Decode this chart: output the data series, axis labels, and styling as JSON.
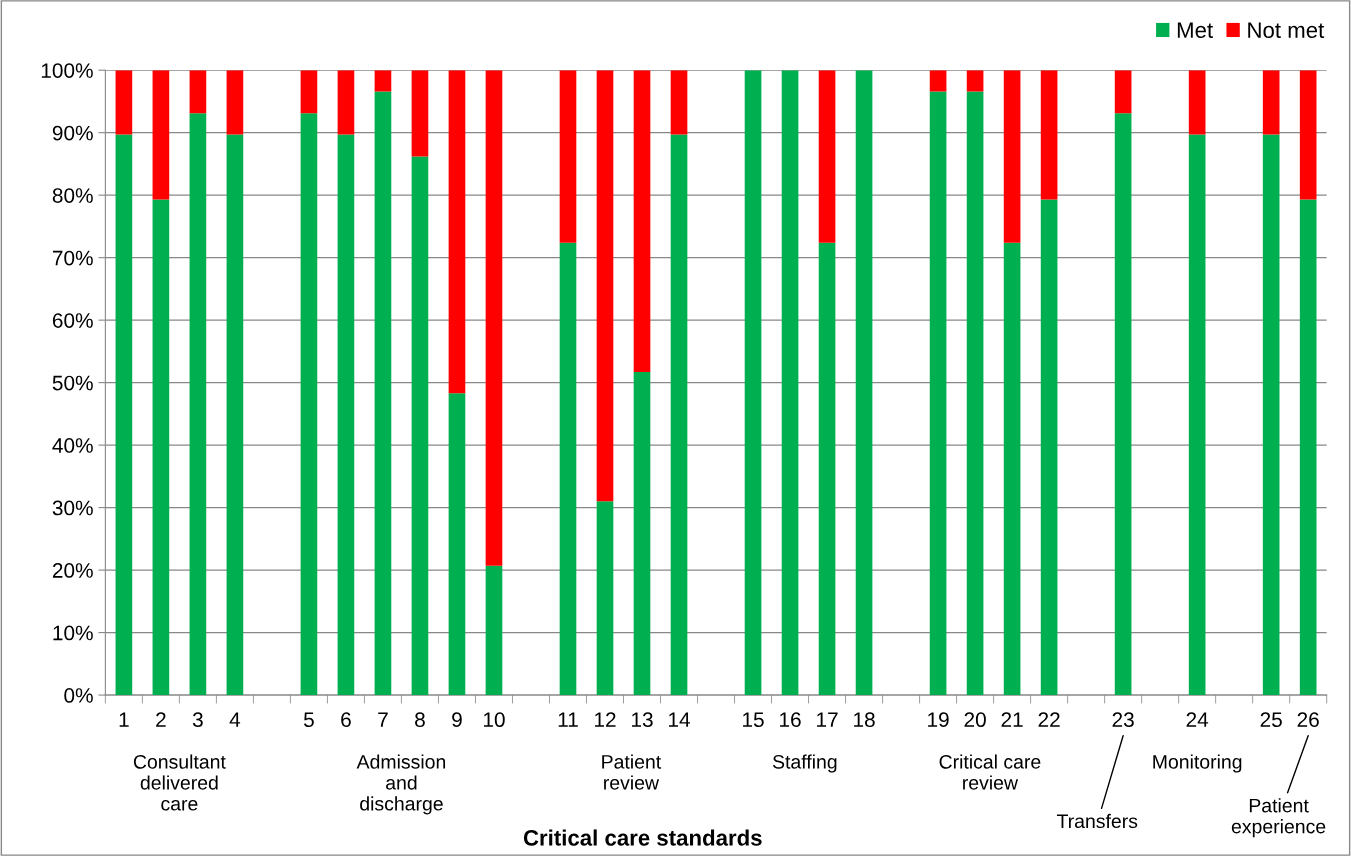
{
  "chart_data": {
    "type": "bar",
    "stacked": true,
    "xlabel": "Critical care standards",
    "categories": [
      "1",
      "2",
      "3",
      "4",
      null,
      "5",
      "6",
      "7",
      "8",
      "9",
      "10",
      null,
      "11",
      "12",
      "13",
      "14",
      null,
      "15",
      "16",
      "17",
      "18",
      null,
      "19",
      "20",
      "21",
      "22",
      null,
      "23",
      null,
      "24",
      null,
      "25",
      "26"
    ],
    "series": [
      {
        "name": "Met",
        "color": "#00b050",
        "values": [
          89.7,
          79.3,
          93.1,
          89.7,
          null,
          93.1,
          89.7,
          96.6,
          86.2,
          48.3,
          20.7,
          null,
          72.4,
          31.0,
          51.7,
          89.7,
          null,
          100,
          100,
          72.4,
          100,
          null,
          96.6,
          96.6,
          72.4,
          79.3,
          null,
          93.1,
          null,
          89.7,
          null,
          89.7,
          79.3
        ]
      },
      {
        "name": "Not met",
        "color": "#ff0000",
        "values": [
          10.3,
          20.7,
          6.9,
          10.3,
          null,
          6.9,
          10.3,
          3.4,
          13.8,
          51.7,
          79.3,
          null,
          27.6,
          69.0,
          48.3,
          10.3,
          null,
          0,
          0,
          27.6,
          0,
          null,
          3.4,
          3.4,
          27.6,
          20.7,
          null,
          6.9,
          null,
          10.3,
          null,
          10.3,
          20.7
        ]
      }
    ],
    "ylim": [
      0,
      100
    ],
    "yticks": [
      {
        "value": 0,
        "label": "0%"
      },
      {
        "value": 10,
        "label": "10%"
      },
      {
        "value": 20,
        "label": "20%"
      },
      {
        "value": 30,
        "label": "30%"
      },
      {
        "value": 40,
        "label": "40%"
      },
      {
        "value": 50,
        "label": "50%"
      },
      {
        "value": 60,
        "label": "60%"
      },
      {
        "value": 70,
        "label": "70%"
      },
      {
        "value": 80,
        "label": "80%"
      },
      {
        "value": 90,
        "label": "90%"
      },
      {
        "value": 100,
        "label": "100%"
      }
    ],
    "grid": "y",
    "legend": "top right",
    "annotations": [
      "Consultant\ndelivered\ncare",
      "Admission\nand\ndischarge",
      "Patient\nreview",
      "Staffing",
      "Critical care\nreview",
      "Transfers",
      "Monitoring",
      "Patient\nexperience"
    ]
  }
}
